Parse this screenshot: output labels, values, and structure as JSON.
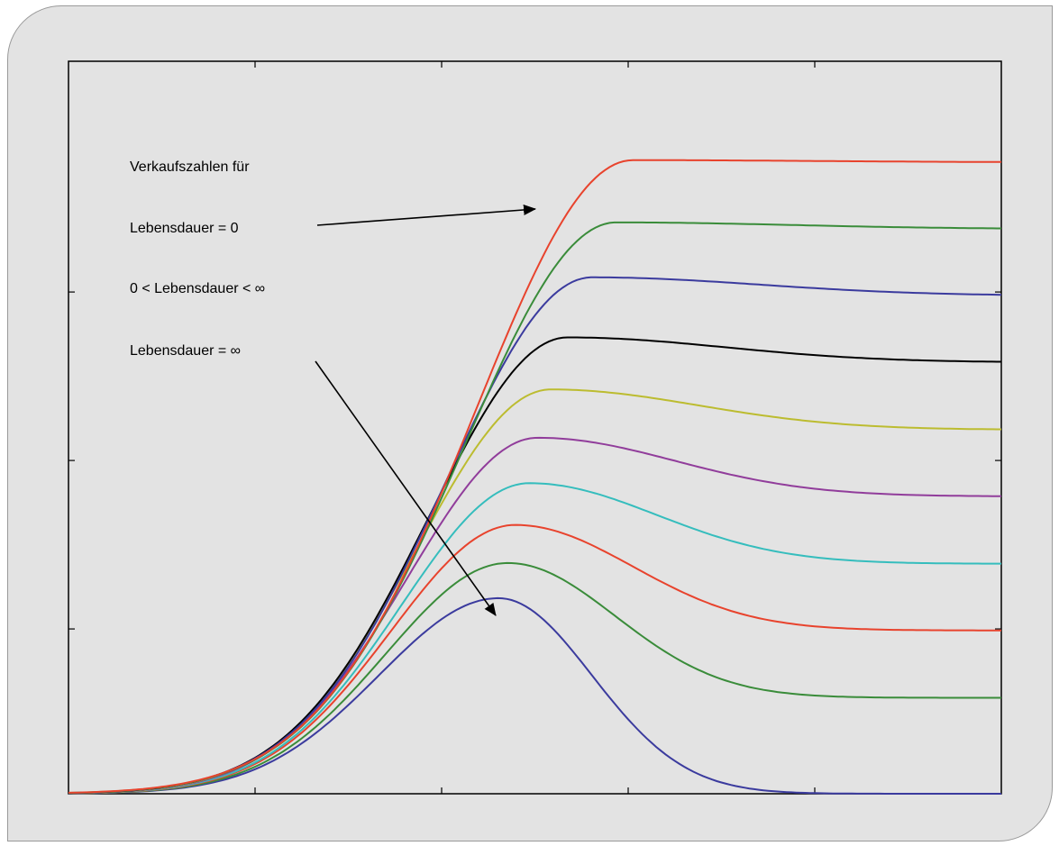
{
  "chart_data": {
    "type": "line",
    "title": "",
    "xlabel": "",
    "ylabel": "",
    "xlim": [
      0,
      100
    ],
    "ylim": [
      0,
      1
    ],
    "grid": false,
    "x_ticks": [
      20,
      40,
      60,
      80
    ],
    "y_ticks": [
      0.225,
      0.455,
      0.685
    ],
    "series": [
      {
        "color": "#e8432d",
        "peak_x": 60.5,
        "peak": 0.865,
        "final": 0.862
      },
      {
        "color": "#3a8c3a",
        "peak_x": 58.7,
        "peak": 0.78,
        "final": 0.771
      },
      {
        "color": "#3b3b9e",
        "peak_x": 56.1,
        "peak": 0.705,
        "final": 0.68
      },
      {
        "color": "#000000",
        "peak_x": 53.5,
        "peak": 0.623,
        "final": 0.589
      },
      {
        "color": "#bcbc30",
        "peak_x": 51.7,
        "peak": 0.552,
        "final": 0.497
      },
      {
        "color": "#913d9b",
        "peak_x": 50.3,
        "peak": 0.486,
        "final": 0.406
      },
      {
        "color": "#35bdbd",
        "peak_x": 49.4,
        "peak": 0.424,
        "final": 0.314
      },
      {
        "color": "#e8432d",
        "peak_x": 47.9,
        "peak": 0.367,
        "final": 0.223
      },
      {
        "color": "#3a8c3a",
        "peak_x": 47.1,
        "peak": 0.315,
        "final": 0.131
      },
      {
        "color": "#3b3b9e",
        "peak_x": 46.1,
        "peak": 0.267,
        "final": 0.0
      }
    ],
    "annotations": {
      "heading": "Verkaufszahlen für",
      "label_zero": "Lebensdauer = 0",
      "label_mid": "0 <  Lebensdauer < ∞",
      "label_inf": "Lebensdauer = ∞"
    }
  }
}
